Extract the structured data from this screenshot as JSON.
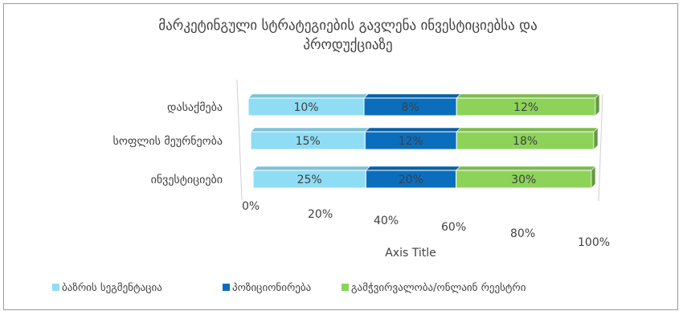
{
  "chart_data": {
    "type": "bar",
    "orientation": "horizontal",
    "stacked": "percent",
    "title": "მარკეტინგული სტრატეგიების გავლენა ინვესტიციებსა და პროდუქციაზე",
    "title_lines": [
      "მარკეტინგული სტრატეგიების გავლენა ინვესტიციებსა და",
      "პროდუქციაზე"
    ],
    "categories": [
      "დასაქმება",
      "სოფლის მეურნეობა",
      "ინვესტიციები"
    ],
    "series": [
      {
        "name": "ბაზრის სეგმენტაცია",
        "values": [
          10,
          15,
          25
        ],
        "labels": [
          "10%",
          "15%",
          "25%"
        ],
        "color": "#8FDDF5",
        "label_color": "#404040"
      },
      {
        "name": "პოზიციონირება",
        "values": [
          8,
          12,
          20
        ],
        "labels": [
          "8%",
          "12%",
          "20%"
        ],
        "color": "#0A6EBD",
        "label_color": "#404040"
      },
      {
        "name": "გამჭვირვალობა/ონლაინ რეესტრი",
        "values": [
          12,
          18,
          30
        ],
        "labels": [
          "12%",
          "18%",
          "30%"
        ],
        "color": "#8DD35A",
        "label_color": "#404040"
      }
    ],
    "x_ticks": [
      "0%",
      "20%",
      "40%",
      "60%",
      "80%",
      "100%"
    ],
    "xlabel": "Axis Title",
    "xlim": [
      0,
      100
    ],
    "legend": "bottom",
    "grid": false
  }
}
